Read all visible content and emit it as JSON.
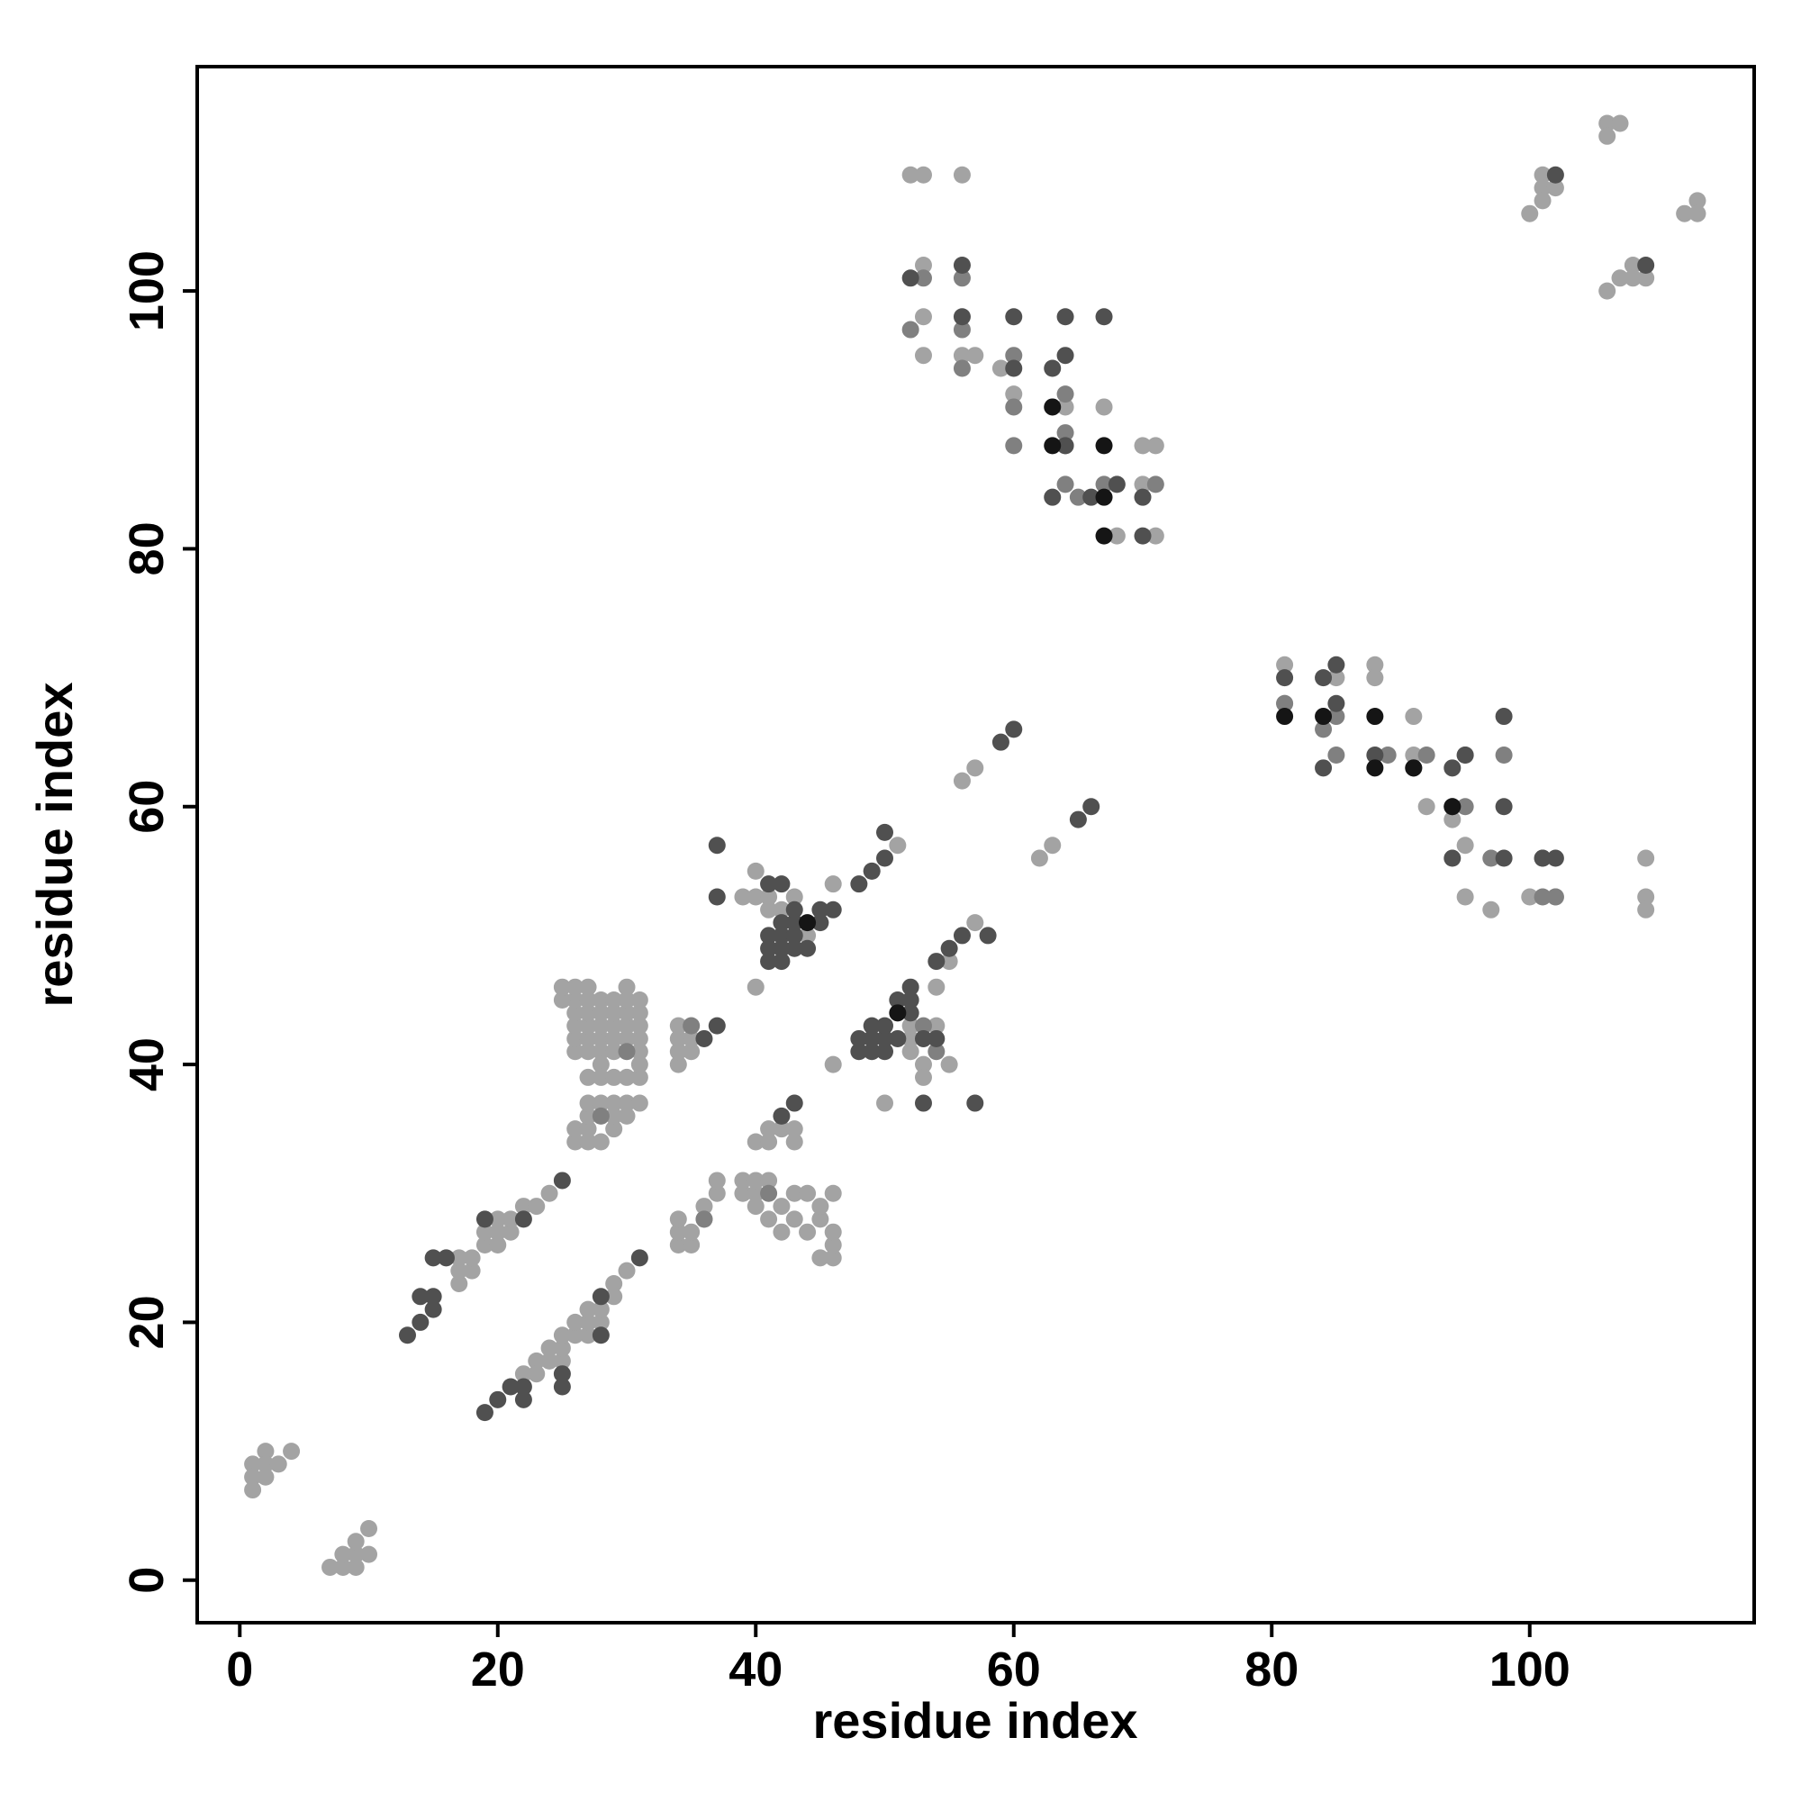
{
  "chart_data": {
    "type": "scatter",
    "xlabel": "residue index",
    "ylabel": "residue index",
    "xlim": [
      -3.3,
      117.4
    ],
    "ylim": [
      -3.3,
      117.4
    ],
    "xticks": [
      0,
      20,
      40,
      60,
      80,
      100
    ],
    "yticks": [
      0,
      20,
      40,
      60,
      80,
      100
    ],
    "series": [
      {
        "color": "#a3a3a3",
        "x": [
          1,
          1,
          1,
          2,
          2,
          2,
          3,
          4,
          7,
          8,
          8,
          9,
          9,
          9,
          10,
          10,
          17,
          17,
          17,
          18,
          18,
          19,
          19,
          20,
          20,
          20,
          21,
          21,
          22,
          23,
          24,
          22,
          23,
          23,
          24,
          24,
          25,
          25,
          25,
          26,
          26,
          27,
          27,
          27,
          28,
          28,
          29,
          29,
          30,
          26,
          26,
          26,
          26,
          26,
          27,
          27,
          27,
          27,
          27,
          28,
          28,
          28,
          28,
          28,
          29,
          29,
          29,
          29,
          29,
          30,
          30,
          30,
          30,
          31,
          31,
          31,
          31,
          31,
          26,
          26,
          27,
          27,
          27,
          27,
          28,
          28,
          29,
          29,
          29,
          30,
          30,
          31,
          25,
          25,
          26,
          27,
          30,
          27,
          28,
          28,
          29,
          30,
          31,
          31,
          34,
          34,
          34,
          34,
          35,
          35,
          35,
          34,
          34,
          34,
          35,
          35,
          36,
          36,
          37,
          37,
          39,
          39,
          40,
          40,
          40,
          41,
          41,
          42,
          42,
          43,
          43,
          44,
          44,
          45,
          45,
          46,
          46,
          46,
          46,
          45,
          40,
          41,
          42,
          43,
          43,
          41,
          40,
          40,
          41,
          41,
          42,
          43,
          44,
          39,
          40,
          46,
          46,
          49,
          51,
          52,
          52,
          53,
          53,
          53,
          54,
          55,
          55,
          54,
          57,
          56,
          57,
          62,
          63,
          50,
          52,
          52,
          53,
          56,
          53,
          53,
          53,
          56,
          57,
          59,
          60,
          64,
          67,
          68,
          70,
          71,
          70,
          71,
          101,
          101,
          101,
          102,
          100,
          106,
          106,
          107,
          106,
          107,
          108,
          108,
          109,
          112,
          113,
          113,
          81,
          81,
          85,
          88,
          88,
          91,
          94,
          95,
          95,
          97,
          100,
          102,
          109,
          109,
          109,
          91,
          92
        ],
        "y": [
          9,
          8,
          7,
          10,
          9,
          8,
          9,
          10,
          1,
          1,
          2,
          1,
          2,
          3,
          2,
          4,
          23,
          24,
          25,
          24,
          25,
          26,
          27,
          26,
          27,
          28,
          27,
          28,
          29,
          29,
          30,
          16,
          17,
          16,
          17,
          18,
          17,
          18,
          19,
          19,
          20,
          19,
          20,
          21,
          20,
          21,
          22,
          23,
          24,
          41,
          42,
          43,
          44,
          45,
          41,
          42,
          43,
          44,
          45,
          41,
          42,
          43,
          44,
          45,
          41,
          42,
          43,
          44,
          45,
          42,
          43,
          44,
          45,
          41,
          42,
          43,
          44,
          45,
          34,
          35,
          34,
          35,
          36,
          37,
          34,
          37,
          35,
          36,
          37,
          36,
          37,
          37,
          45,
          46,
          46,
          46,
          46,
          39,
          40,
          39,
          39,
          39,
          39,
          40,
          40,
          41,
          42,
          43,
          41,
          42,
          43,
          26,
          27,
          28,
          26,
          27,
          28,
          29,
          30,
          31,
          30,
          31,
          29,
          30,
          31,
          28,
          31,
          27,
          29,
          28,
          30,
          27,
          30,
          28,
          29,
          25,
          26,
          27,
          30,
          25,
          34,
          35,
          35,
          34,
          35,
          34,
          53,
          55,
          52,
          53,
          52,
          53,
          50,
          53,
          46,
          54,
          40,
          55,
          57,
          41,
          42,
          40,
          39,
          42,
          43,
          40,
          48,
          46,
          51,
          62,
          63,
          56,
          57,
          37,
          43,
          109,
          109,
          109,
          102,
          98,
          95,
          95,
          95,
          94,
          92,
          91,
          91,
          81,
          88,
          88,
          85,
          81,
          109,
          108,
          107,
          108,
          106,
          113,
          112,
          113,
          100,
          101,
          102,
          101,
          101,
          106,
          107,
          106,
          71,
          68,
          70,
          71,
          70,
          67,
          59,
          57,
          53,
          52,
          53,
          53,
          56,
          53,
          52,
          64,
          60
        ]
      },
      {
        "color": "#808080",
        "x": [
          52,
          53,
          56,
          56,
          56,
          60,
          60,
          60,
          64,
          64,
          64,
          64,
          65,
          67,
          71,
          95,
          97,
          98,
          101,
          101,
          102,
          81,
          85,
          84,
          85,
          89,
          92,
          95,
          36,
          41,
          30,
          28,
          35,
          54,
          53
        ],
        "y": [
          97,
          101,
          101,
          97,
          94,
          95,
          91,
          88,
          92,
          89,
          88,
          85,
          84,
          85,
          85,
          60,
          56,
          64,
          53,
          56,
          53,
          68,
          67,
          66,
          64,
          64,
          64,
          64,
          28,
          30,
          41,
          36,
          43,
          41,
          43
        ]
      },
      {
        "color": "#505050",
        "x": [
          13,
          14,
          14,
          15,
          15,
          15,
          16,
          19,
          22,
          25,
          19,
          20,
          21,
          22,
          22,
          25,
          25,
          28,
          28,
          31,
          36,
          37,
          37,
          37,
          42,
          43,
          41,
          41,
          41,
          42,
          42,
          42,
          42,
          43,
          43,
          43,
          44,
          45,
          45,
          46,
          41,
          42,
          43,
          48,
          49,
          50,
          50,
          48,
          48,
          49,
          49,
          49,
          50,
          50,
          50,
          51,
          51,
          52,
          52,
          52,
          53,
          54,
          54,
          55,
          56,
          58,
          59,
          60,
          65,
          66,
          53,
          57,
          52,
          56,
          56,
          60,
          60,
          63,
          64,
          64,
          67,
          63,
          66,
          68,
          70,
          70,
          81,
          84,
          85,
          85,
          84,
          88,
          91,
          94,
          94,
          95,
          94,
          98,
          98,
          98,
          101,
          102,
          109,
          102,
          64
        ],
        "y": [
          19,
          20,
          22,
          21,
          22,
          25,
          25,
          28,
          28,
          31,
          13,
          14,
          15,
          14,
          15,
          15,
          16,
          19,
          22,
          25,
          42,
          43,
          53,
          57,
          36,
          37,
          48,
          49,
          50,
          48,
          49,
          50,
          51,
          49,
          50,
          51,
          49,
          51,
          52,
          52,
          54,
          54,
          52,
          54,
          55,
          56,
          58,
          41,
          42,
          41,
          42,
          43,
          41,
          42,
          43,
          42,
          45,
          44,
          46,
          45,
          42,
          42,
          48,
          49,
          50,
          50,
          65,
          66,
          59,
          60,
          37,
          37,
          101,
          102,
          98,
          98,
          94,
          94,
          98,
          95,
          98,
          84,
          84,
          85,
          84,
          81,
          70,
          70,
          71,
          68,
          63,
          64,
          63,
          63,
          60,
          64,
          56,
          67,
          60,
          56,
          56,
          56,
          102,
          109,
          88
        ]
      },
      {
        "color": "#151515",
        "x": [
          44,
          51,
          63,
          63,
          67,
          67,
          67,
          81,
          84,
          88,
          88,
          91,
          94
        ],
        "y": [
          51,
          44,
          91,
          88,
          88,
          84,
          81,
          67,
          67,
          67,
          63,
          63,
          60
        ]
      }
    ]
  }
}
